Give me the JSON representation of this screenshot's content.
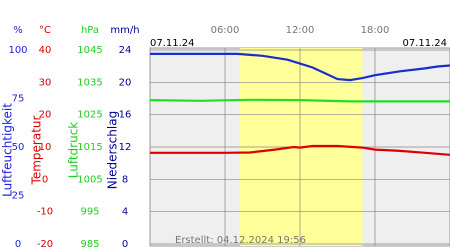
{
  "chart_data": {
    "type": "line",
    "start_date": "07.11.24",
    "end_date": "07.11.24",
    "footer": "Erstellt: 04.12.2024 19:56",
    "xlim": [
      0,
      24
    ],
    "xticks": [
      {
        "value": 6,
        "label": "06:00"
      },
      {
        "value": 12,
        "label": "12:00"
      },
      {
        "value": 18,
        "label": "18:00"
      }
    ],
    "daylight": [
      7.2,
      17.0
    ],
    "axes": [
      {
        "unit": "%",
        "label": "Luftfeuchtigkeit",
        "color": "#2222dd",
        "ylim": [
          0,
          100
        ],
        "yticks": [
          0,
          25,
          50,
          75,
          100
        ]
      },
      {
        "unit": "°C",
        "label": "Temperatur",
        "color": "#dd0000",
        "ylim": [
          -20,
          40
        ],
        "yticks": [
          -20,
          -10,
          0,
          10,
          20,
          30,
          40
        ]
      },
      {
        "unit": "hPa",
        "label": "Luftdruck",
        "color": "#22cc22",
        "ylim": [
          985,
          1045
        ],
        "yticks": [
          985,
          995,
          1005,
          1015,
          1025,
          1035,
          1045
        ]
      },
      {
        "unit": "mm/h",
        "label": "Niederschlag",
        "color": "#000099",
        "ylim": [
          0,
          24
        ],
        "yticks": [
          0,
          4,
          8,
          12,
          16,
          20,
          24
        ]
      }
    ],
    "series": [
      {
        "name": "Luftfeuchtigkeit",
        "axis": 0,
        "color": "#1a2ecc",
        "x": [
          0,
          7,
          9,
          11,
          12,
          13,
          14,
          15,
          16,
          17,
          18,
          20,
          22,
          23,
          24
        ],
        "values": [
          98,
          98,
          97,
          95,
          93,
          91,
          88,
          85,
          84.5,
          85.5,
          87,
          89,
          90.5,
          91.5,
          92
        ]
      },
      {
        "name": "Luftdruck",
        "axis": 2,
        "color": "#22dd22",
        "x": [
          0,
          4,
          8,
          12,
          16,
          24
        ],
        "values": [
          1029.5,
          1029.3,
          1029.6,
          1029.5,
          1029.1,
          1029.1
        ]
      },
      {
        "name": "Temperatur",
        "axis": 1,
        "color": "#dd0000",
        "x": [
          0,
          6,
          8,
          10,
          11.5,
          12,
          13,
          15,
          17,
          18,
          20,
          22,
          24
        ],
        "values": [
          8.2,
          8.2,
          8.3,
          9.2,
          10.0,
          9.8,
          10.3,
          10.3,
          9.8,
          9.2,
          8.8,
          8.2,
          7.6
        ]
      }
    ]
  }
}
